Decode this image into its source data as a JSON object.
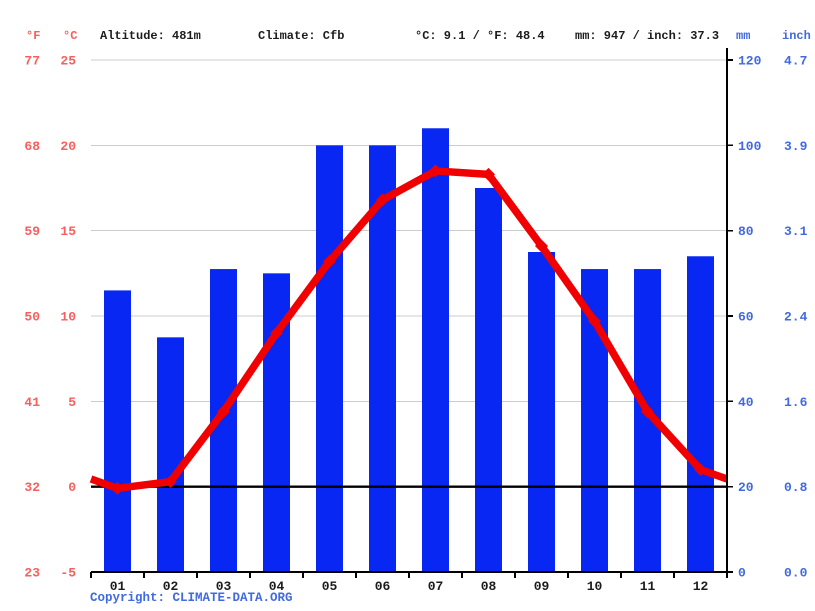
{
  "header": {
    "fahrenheit_label": "°F",
    "celsius_label": "°C",
    "altitude": "Altitude: 481m",
    "climate": "Climate: Cfb",
    "avg_temp_summary": "°C: 9.1 / °F: 48.4",
    "precip_summary": "mm: 947 / inch: 37.3",
    "mm_label": "mm",
    "inch_label": "inch"
  },
  "footer": {
    "copyright_prefix": "Copyright: ",
    "copyright_link": "CLIMATE-DATA.ORG"
  },
  "colors": {
    "bar_blue": "#0827f2",
    "line_red": "#f00000",
    "temp_label_red": "#f95e5e",
    "precip_label_blue": "#4169e1",
    "text_dark": "#1c1c1c",
    "gridline_gray": "#cccccc",
    "axis_black": "#000000"
  },
  "chart_data": {
    "type": "bar+line",
    "categories": [
      "01",
      "02",
      "03",
      "04",
      "05",
      "06",
      "07",
      "08",
      "09",
      "10",
      "11",
      "12"
    ],
    "series": [
      {
        "name": "precipitation_mm",
        "type": "bar",
        "values": [
          66,
          55,
          71,
          70,
          100,
          100,
          104,
          90,
          75,
          71,
          71,
          74
        ]
      },
      {
        "name": "temperature_celsius",
        "type": "line",
        "values": [
          -0.1,
          0.3,
          4.4,
          9.0,
          13.2,
          16.8,
          18.5,
          18.3,
          14.1,
          9.7,
          4.4,
          1.0
        ],
        "edge_start": 0.45,
        "edge_end": 0.45
      }
    ],
    "axes": {
      "left_fahrenheit": {
        "unit": "°F",
        "ticks": [
          77,
          68,
          59,
          50,
          41,
          32,
          23
        ]
      },
      "left_celsius": {
        "unit": "°C",
        "ticks": [
          25,
          20,
          15,
          10,
          5,
          0,
          -5
        ],
        "range": [
          -5,
          25
        ]
      },
      "right_mm": {
        "unit": "mm",
        "ticks": [
          120,
          100,
          80,
          60,
          40,
          20,
          0
        ],
        "range": [
          0,
          120
        ]
      },
      "right_inch": {
        "unit": "inch",
        "ticks": [
          "4.7",
          "3.9",
          "3.1",
          "2.4",
          "1.6",
          "0.8",
          "0.0"
        ]
      }
    },
    "grid": true,
    "zero_line_at_celsius": 0,
    "legend_position": "none"
  }
}
